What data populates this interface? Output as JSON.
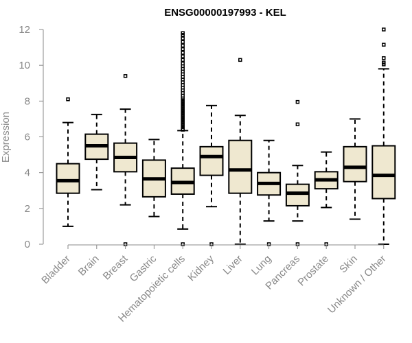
{
  "chart_data": {
    "type": "boxplot",
    "title": "ENSG00000197993 - KEL",
    "xlabel": "",
    "ylabel": "Expression",
    "ylim": [
      0,
      12
    ],
    "yticks": [
      0,
      2,
      4,
      6,
      8,
      10,
      12
    ],
    "categories": [
      "Bladder",
      "Brain",
      "Breast",
      "Gastric",
      "Hematopoietic cells",
      "Kidney",
      "Liver",
      "Lung",
      "Pancreas",
      "Prostate",
      "Skin",
      "Unknown / Other"
    ],
    "boxes": [
      {
        "min": 1.0,
        "q1": 2.85,
        "median": 3.55,
        "q3": 4.5,
        "max": 6.8,
        "outliers": [
          8.1
        ]
      },
      {
        "min": 3.05,
        "q1": 4.75,
        "median": 5.5,
        "q3": 6.15,
        "max": 7.25,
        "outliers": []
      },
      {
        "min": 2.2,
        "q1": 4.05,
        "median": 4.85,
        "q3": 5.65,
        "max": 7.55,
        "outliers": [
          9.4,
          0.0
        ]
      },
      {
        "min": 1.55,
        "q1": 2.65,
        "median": 3.65,
        "q3": 4.7,
        "max": 5.85,
        "outliers": []
      },
      {
        "min": 0.85,
        "q1": 2.8,
        "median": 3.45,
        "q3": 4.25,
        "max": 6.35,
        "outliers": [
          0.0,
          6.4,
          6.45,
          6.55,
          6.65,
          6.75,
          6.85,
          6.95,
          7.05,
          7.15,
          7.25,
          7.35,
          7.45,
          7.55,
          7.65,
          7.75,
          7.85,
          7.95,
          8.05,
          8.15,
          8.3,
          8.45,
          8.6,
          8.75,
          8.9,
          9.05,
          9.2,
          9.35,
          9.5,
          9.65,
          9.8,
          9.95,
          10.1,
          10.3,
          10.5,
          10.7,
          10.9,
          11.1,
          11.3,
          11.5,
          11.7,
          11.8
        ]
      },
      {
        "min": 2.1,
        "q1": 3.85,
        "median": 4.9,
        "q3": 5.45,
        "max": 7.75,
        "outliers": [
          0.0
        ]
      },
      {
        "min": 0.0,
        "q1": 2.85,
        "median": 4.15,
        "q3": 5.8,
        "max": 7.2,
        "outliers": [
          10.3
        ]
      },
      {
        "min": 1.3,
        "q1": 2.75,
        "median": 3.4,
        "q3": 4.0,
        "max": 5.8,
        "outliers": [
          0.0
        ]
      },
      {
        "min": 1.3,
        "q1": 2.15,
        "median": 2.85,
        "q3": 3.35,
        "max": 4.4,
        "outliers": [
          0.0,
          6.7,
          7.95
        ]
      },
      {
        "min": 2.05,
        "q1": 3.1,
        "median": 3.6,
        "q3": 4.05,
        "max": 5.15,
        "outliers": [
          0.0
        ]
      },
      {
        "min": 1.4,
        "q1": 3.5,
        "median": 4.3,
        "q3": 5.45,
        "max": 7.0,
        "outliers": []
      },
      {
        "min": 0.0,
        "q1": 2.55,
        "median": 3.85,
        "q3": 5.5,
        "max": 9.8,
        "outliers": [
          10.05,
          10.15,
          10.4,
          11.15,
          12.0
        ]
      }
    ],
    "box_fill": "#efe8d0",
    "axis_color": "#888888"
  }
}
